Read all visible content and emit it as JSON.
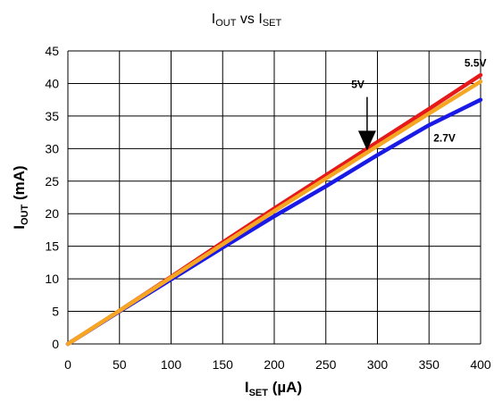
{
  "chart_data": {
    "type": "line",
    "title": {
      "main": "I",
      "sub1": "OUT",
      "mid": " vs I",
      "sub2": "SET"
    },
    "xlabel": {
      "main": "I",
      "sub": "SET",
      "rest": " (µA)"
    },
    "ylabel": {
      "main": "I",
      "sub": "OUT",
      "rest": " (mA)"
    },
    "xlim": [
      0,
      400
    ],
    "ylim": [
      0,
      45
    ],
    "x_ticks": [
      "0",
      "50",
      "100",
      "150",
      "200",
      "250",
      "300",
      "350",
      "400"
    ],
    "y_ticks": [
      "0",
      "5",
      "10",
      "15",
      "20",
      "25",
      "30",
      "35",
      "40",
      "45"
    ],
    "grid": true,
    "series": [
      {
        "name": "2.7V",
        "color": "#1a1ae6",
        "x": [
          0,
          50,
          100,
          150,
          200,
          250,
          300,
          350,
          400
        ],
        "y": [
          0,
          5,
          9.9,
          14.8,
          19.6,
          24.2,
          29.0,
          33.6,
          37.5
        ]
      },
      {
        "name": "5.5V",
        "color": "#e61a1a",
        "x": [
          0,
          50,
          100,
          150,
          200,
          250,
          300,
          350,
          400
        ],
        "y": [
          0,
          5.1,
          10.3,
          15.6,
          20.8,
          25.9,
          31.0,
          36.1,
          41.3
        ]
      },
      {
        "name": "",
        "color": "#f5a623",
        "x": [
          0,
          50,
          100,
          150,
          200,
          250,
          300,
          350,
          400
        ],
        "y": [
          0,
          5.1,
          10.2,
          15.3,
          20.4,
          25.4,
          30.4,
          35.4,
          40.3
        ]
      }
    ],
    "annotations": [
      {
        "text": "5.5V",
        "x": 395,
        "y": 42.6
      },
      {
        "text": "5V",
        "x": 281,
        "y": 39.3,
        "arrow_to_y": 30
      },
      {
        "text": "2.7V",
        "x": 365,
        "y": 31.1
      }
    ]
  }
}
